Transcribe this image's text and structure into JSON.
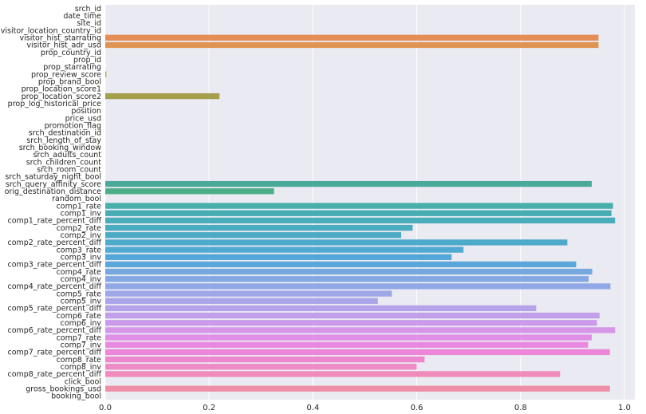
{
  "chart_data": {
    "type": "bar",
    "orientation": "horizontal",
    "title": "",
    "xlabel": "",
    "ylabel": "",
    "xlim": [
      0,
      1.02
    ],
    "xticks": [
      0.0,
      0.2,
      0.4,
      0.6,
      0.8,
      1.0
    ],
    "xtick_labels": [
      "0.0",
      "0.2",
      "0.4",
      "0.6",
      "0.8",
      "1.0"
    ],
    "grid": true,
    "background": "#eaeaf2",
    "gridline_color": "#ffffff",
    "bars": [
      {
        "category": "srch_id",
        "value": 0,
        "color": "#f77189"
      },
      {
        "category": "date_time",
        "value": 0,
        "color": "#f6737f"
      },
      {
        "category": "site_id",
        "value": 0,
        "color": "#f57574"
      },
      {
        "category": "visitor_location_country_id",
        "value": 0,
        "color": "#e9835a"
      },
      {
        "category": "visitor_hist_starrating",
        "value": 0.95,
        "color": "#e58d56"
      },
      {
        "category": "visitor_hist_adr_usd",
        "value": 0.95,
        "color": "#e09454"
      },
      {
        "category": "prop_country_id",
        "value": 0,
        "color": "#d79a4f"
      },
      {
        "category": "prop_id",
        "value": 0,
        "color": "#cf9f4c"
      },
      {
        "category": "prop_starrating",
        "value": 0,
        "color": "#c7a34a"
      },
      {
        "category": "prop_review_score",
        "value": 0.002,
        "color": "#d09a32"
      },
      {
        "category": "prop_brand_bool",
        "value": 0,
        "color": "#b8a748"
      },
      {
        "category": "prop_location_score1",
        "value": 0,
        "color": "#aea947"
      },
      {
        "category": "prop_location_score2",
        "value": 0.22,
        "color": "#a59e4b"
      },
      {
        "category": "prop_log_historical_price",
        "value": 0,
        "color": "#97a946"
      },
      {
        "category": "position",
        "value": 0,
        "color": "#8aac48"
      },
      {
        "category": "price_usd",
        "value": 0,
        "color": "#7bae4d"
      },
      {
        "category": "promotion_flag",
        "value": 0,
        "color": "#68b053"
      },
      {
        "category": "srch_destination_id",
        "value": 0,
        "color": "#50b15f"
      },
      {
        "category": "srch_length_of_stay",
        "value": 0,
        "color": "#4cb17a"
      },
      {
        "category": "srch_booking_window",
        "value": 0,
        "color": "#4db088"
      },
      {
        "category": "srch_adults_count",
        "value": 0,
        "color": "#4eaf92"
      },
      {
        "category": "srch_children_count",
        "value": 0,
        "color": "#4faf9a"
      },
      {
        "category": "srch_room_count",
        "value": 0,
        "color": "#4faea1"
      },
      {
        "category": "srch_saturday_night_bool",
        "value": 0,
        "color": "#50aea7"
      },
      {
        "category": "srch_query_affinity_score",
        "value": 0.937,
        "color": "#4ba99a"
      },
      {
        "category": "orig_destination_distance",
        "value": 0.325,
        "color": "#4cae88"
      },
      {
        "category": "random_bool",
        "value": 0,
        "color": "#52adb5"
      },
      {
        "category": "comp1_rate",
        "value": 0.978,
        "color": "#47aeac"
      },
      {
        "category": "comp1_inv",
        "value": 0.975,
        "color": "#48adb3"
      },
      {
        "category": "comp1_rate_percent_diff",
        "value": 0.982,
        "color": "#49adba"
      },
      {
        "category": "comp2_rate",
        "value": 0.592,
        "color": "#4aacbf"
      },
      {
        "category": "comp2_inv",
        "value": 0.57,
        "color": "#4babc5"
      },
      {
        "category": "comp2_rate_percent_diff",
        "value": 0.89,
        "color": "#4daacb"
      },
      {
        "category": "comp3_rate",
        "value": 0.69,
        "color": "#4fa9d2"
      },
      {
        "category": "comp3_inv",
        "value": 0.667,
        "color": "#53a7d8"
      },
      {
        "category": "comp3_rate_percent_diff",
        "value": 0.907,
        "color": "#5ba6da"
      },
      {
        "category": "comp4_rate",
        "value": 0.938,
        "color": "#76a8e0"
      },
      {
        "category": "comp4_inv",
        "value": 0.931,
        "color": "#84a9e2"
      },
      {
        "category": "comp4_rate_percent_diff",
        "value": 0.973,
        "color": "#91a8e6"
      },
      {
        "category": "comp5_rate",
        "value": 0.552,
        "color": "#9ea7e7"
      },
      {
        "category": "comp5_inv",
        "value": 0.525,
        "color": "#aaa5e8"
      },
      {
        "category": "comp5_rate_percent_diff",
        "value": 0.83,
        "color": "#b5a2e9"
      },
      {
        "category": "comp6_rate",
        "value": 0.952,
        "color": "#c19fe9"
      },
      {
        "category": "comp6_inv",
        "value": 0.947,
        "color": "#cb9be9"
      },
      {
        "category": "comp6_rate_percent_diff",
        "value": 0.982,
        "color": "#d596e8"
      },
      {
        "category": "comp7_rate",
        "value": 0.937,
        "color": "#e08fe6"
      },
      {
        "category": "comp7_inv",
        "value": 0.93,
        "color": "#e888e1"
      },
      {
        "category": "comp7_rate_percent_diff",
        "value": 0.972,
        "color": "#ec86d8"
      },
      {
        "category": "comp8_rate",
        "value": 0.615,
        "color": "#ee88ce"
      },
      {
        "category": "comp8_inv",
        "value": 0.6,
        "color": "#ef8ac5"
      },
      {
        "category": "comp8_rate_percent_diff",
        "value": 0.876,
        "color": "#f08bbb"
      },
      {
        "category": "click_bool",
        "value": 0,
        "color": "#f18db2"
      },
      {
        "category": "gross_bookings_usd",
        "value": 0.972,
        "color": "#ee8fa8"
      },
      {
        "category": "booking_bool",
        "value": 0,
        "color": "#f4879d"
      }
    ]
  }
}
